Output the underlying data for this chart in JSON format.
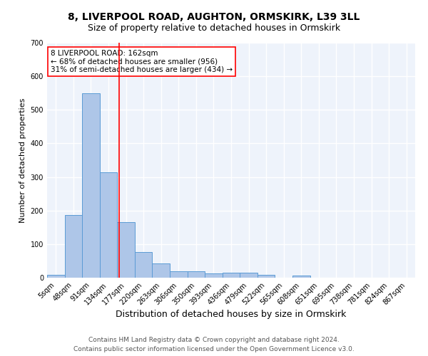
{
  "title1": "8, LIVERPOOL ROAD, AUGHTON, ORMSKIRK, L39 3LL",
  "title2": "Size of property relative to detached houses in Ormskirk",
  "xlabel": "Distribution of detached houses by size in Ormskirk",
  "ylabel": "Number of detached properties",
  "bar_labels": [
    "5sqm",
    "48sqm",
    "91sqm",
    "134sqm",
    "177sqm",
    "220sqm",
    "263sqm",
    "306sqm",
    "350sqm",
    "393sqm",
    "436sqm",
    "479sqm",
    "522sqm",
    "565sqm",
    "608sqm",
    "651sqm",
    "695sqm",
    "738sqm",
    "781sqm",
    "824sqm",
    "867sqm"
  ],
  "bar_values": [
    8,
    187,
    550,
    315,
    165,
    77,
    42,
    20,
    20,
    13,
    15,
    15,
    8,
    0,
    6,
    0,
    0,
    0,
    0,
    0,
    0
  ],
  "bar_color": "#aec6e8",
  "bar_edge_color": "#5b9bd5",
  "background_color": "#eef3fb",
  "grid_color": "#ffffff",
  "vline_x": 3.62,
  "vline_color": "red",
  "annotation_text": "8 LIVERPOOL ROAD: 162sqm\n← 68% of detached houses are smaller (956)\n31% of semi-detached houses are larger (434) →",
  "annotation_box_color": "white",
  "annotation_box_edge": "red",
  "ylim": [
    0,
    700
  ],
  "yticks": [
    0,
    100,
    200,
    300,
    400,
    500,
    600,
    700
  ],
  "footer1": "Contains HM Land Registry data © Crown copyright and database right 2024.",
  "footer2": "Contains public sector information licensed under the Open Government Licence v3.0.",
  "title1_fontsize": 10,
  "title2_fontsize": 9,
  "xlabel_fontsize": 9,
  "ylabel_fontsize": 8,
  "tick_fontsize": 7,
  "annotation_fontsize": 7.5,
  "footer_fontsize": 6.5
}
